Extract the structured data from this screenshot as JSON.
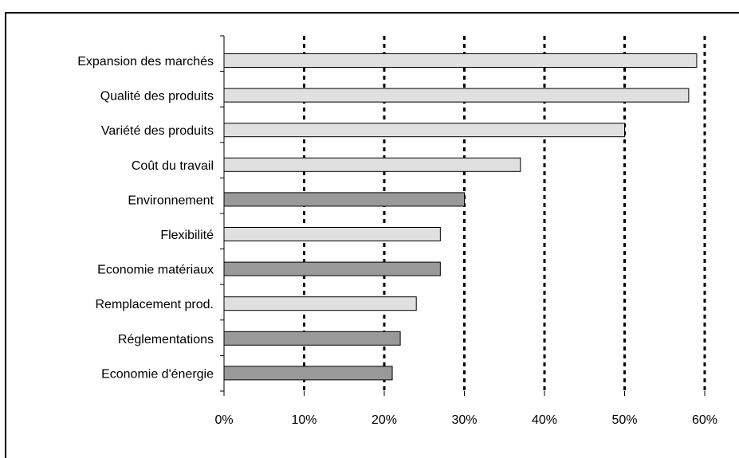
{
  "chart_data": {
    "type": "bar",
    "orientation": "horizontal",
    "title": "",
    "xlabel": "",
    "ylabel": "",
    "categories": [
      "Expansion des marchés",
      "Qualité des produits",
      "Variété des produits",
      "Coût du travail",
      "Environnement",
      "Flexibilité",
      "Economie matériaux",
      "Remplacement prod.",
      "Réglementations",
      "Economie d'énergie"
    ],
    "values": [
      59,
      58,
      50,
      37,
      30,
      27,
      27,
      24,
      22,
      21
    ],
    "bar_colors": [
      "#e0e0e0",
      "#e0e0e0",
      "#e0e0e0",
      "#e0e0e0",
      "#999999",
      "#e0e0e0",
      "#999999",
      "#e0e0e0",
      "#999999",
      "#999999"
    ],
    "xlim": [
      0,
      60
    ],
    "xticks": [
      0,
      10,
      20,
      30,
      40,
      50,
      60
    ],
    "xtick_labels": [
      "0%",
      "10%",
      "20%",
      "30%",
      "40%",
      "50%",
      "60%"
    ],
    "grid": "vertical dashed",
    "legend": "none"
  }
}
